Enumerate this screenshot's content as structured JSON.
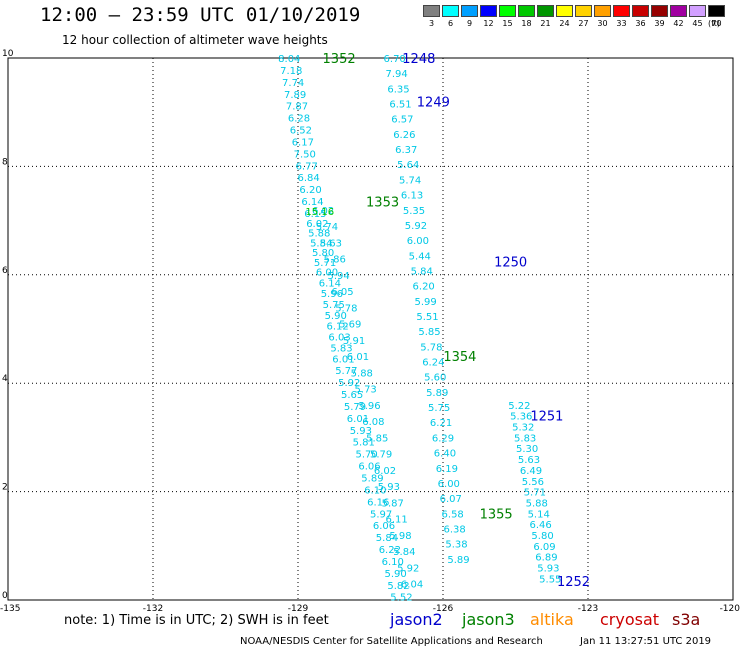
{
  "header": {
    "title": "12:00 – 23:59 UTC 01/10/2019",
    "subtitle": "12 hour collection of altimeter wave heights"
  },
  "legend": {
    "unit": "(ft)",
    "items": [
      {
        "label": "3",
        "color": "#808080"
      },
      {
        "label": "6",
        "color": "#00ffff"
      },
      {
        "label": "9",
        "color": "#00a0ff"
      },
      {
        "label": "12",
        "color": "#0000ff"
      },
      {
        "label": "15",
        "color": "#00ff00"
      },
      {
        "label": "18",
        "color": "#00c800"
      },
      {
        "label": "21",
        "color": "#009600"
      },
      {
        "label": "24",
        "color": "#ffff00"
      },
      {
        "label": "27",
        "color": "#ffd200"
      },
      {
        "label": "30",
        "color": "#ffa000"
      },
      {
        "label": "33",
        "color": "#ff0000"
      },
      {
        "label": "36",
        "color": "#c80000"
      },
      {
        "label": "39",
        "color": "#960000"
      },
      {
        "label": "42",
        "color": "#a000a0"
      },
      {
        "label": "45",
        "color": "#d2a0ff"
      },
      {
        "label": "70",
        "color": "#000000"
      }
    ]
  },
  "axes": {
    "x_ticks": [
      "-135",
      "-132",
      "-129",
      "-126",
      "-123",
      "-120"
    ],
    "y_ticks": [
      "0",
      "2",
      "4",
      "6",
      "8",
      "10"
    ]
  },
  "chart_data": {
    "type": "scatter",
    "xlim": [
      -135,
      -120
    ],
    "ylim": [
      0,
      10
    ],
    "grid": true,
    "tracks": [
      {
        "id": "right",
        "color": "#00c8e6",
        "points": [
          {
            "x": -127.0,
            "y": 10.0,
            "v": "6.70"
          },
          {
            "x": -126.96,
            "y": 9.72,
            "v": "7.94"
          },
          {
            "x": -126.92,
            "y": 9.44,
            "v": "6.35"
          },
          {
            "x": -126.88,
            "y": 9.16,
            "v": "6.51"
          },
          {
            "x": -126.84,
            "y": 8.88,
            "v": "6.57"
          },
          {
            "x": -126.8,
            "y": 8.6,
            "v": "6.26"
          },
          {
            "x": -126.76,
            "y": 8.32,
            "v": "6.37"
          },
          {
            "x": -126.72,
            "y": 8.04,
            "v": "5.64"
          },
          {
            "x": -126.68,
            "y": 7.76,
            "v": "5.74"
          },
          {
            "x": -126.64,
            "y": 7.48,
            "v": "6.13"
          },
          {
            "x": -126.6,
            "y": 7.2,
            "v": "5.35"
          },
          {
            "x": -126.56,
            "y": 6.92,
            "v": "5.92"
          },
          {
            "x": -126.52,
            "y": 6.64,
            "v": "6.00"
          },
          {
            "x": -126.48,
            "y": 6.36,
            "v": "5.44"
          },
          {
            "x": -126.44,
            "y": 6.08,
            "v": "5.84"
          },
          {
            "x": -126.4,
            "y": 5.8,
            "v": "6.20"
          },
          {
            "x": -126.36,
            "y": 5.52,
            "v": "5.99"
          },
          {
            "x": -126.32,
            "y": 5.24,
            "v": "5.51"
          },
          {
            "x": -126.28,
            "y": 4.96,
            "v": "5.85"
          },
          {
            "x": -126.24,
            "y": 4.68,
            "v": "5.78"
          },
          {
            "x": -126.2,
            "y": 4.4,
            "v": "6.24"
          },
          {
            "x": -126.16,
            "y": 4.12,
            "v": "5.60"
          },
          {
            "x": -126.12,
            "y": 3.84,
            "v": "5.89"
          },
          {
            "x": -126.08,
            "y": 3.56,
            "v": "5.75"
          },
          {
            "x": -126.04,
            "y": 3.28,
            "v": "6.21"
          },
          {
            "x": -126.0,
            "y": 3.0,
            "v": "6.29"
          },
          {
            "x": -125.96,
            "y": 2.72,
            "v": "6.40"
          },
          {
            "x": -125.92,
            "y": 2.44,
            "v": "6.19"
          },
          {
            "x": -125.88,
            "y": 2.16,
            "v": "6.00"
          },
          {
            "x": -125.84,
            "y": 1.88,
            "v": "6.07"
          },
          {
            "x": -125.8,
            "y": 1.6,
            "v": "6.58"
          },
          {
            "x": -125.76,
            "y": 1.32,
            "v": "6.38"
          },
          {
            "x": -125.72,
            "y": 1.04,
            "v": "5.38"
          },
          {
            "x": -125.68,
            "y": 0.76,
            "v": "5.89"
          }
        ]
      },
      {
        "id": "right-lower",
        "color": "#00c8e6",
        "points": [
          {
            "x": -124.42,
            "y": 3.6,
            "v": "5.22"
          },
          {
            "x": -124.38,
            "y": 3.4,
            "v": "5.36"
          },
          {
            "x": -124.34,
            "y": 3.2,
            "v": "5.32"
          },
          {
            "x": -124.3,
            "y": 3.0,
            "v": "5.83"
          },
          {
            "x": -124.26,
            "y": 2.8,
            "v": "5.30"
          },
          {
            "x": -124.22,
            "y": 2.6,
            "v": "5.63"
          },
          {
            "x": -124.18,
            "y": 2.4,
            "v": "6.49"
          },
          {
            "x": -124.14,
            "y": 2.2,
            "v": "5.56"
          },
          {
            "x": -124.1,
            "y": 2.0,
            "v": "5.71"
          },
          {
            "x": -124.06,
            "y": 1.8,
            "v": "5.88"
          },
          {
            "x": -124.02,
            "y": 1.6,
            "v": "5.14"
          },
          {
            "x": -123.98,
            "y": 1.4,
            "v": "6.46"
          },
          {
            "x": -123.94,
            "y": 1.2,
            "v": "5.80"
          },
          {
            "x": -123.9,
            "y": 1.0,
            "v": "6.09"
          },
          {
            "x": -123.86,
            "y": 0.8,
            "v": "6.89"
          },
          {
            "x": -123.82,
            "y": 0.6,
            "v": "5.93"
          },
          {
            "x": -123.78,
            "y": 0.4,
            "v": "5.55"
          }
        ]
      },
      {
        "id": "left",
        "color": "#00c8e6",
        "points": [
          {
            "x": -129.18,
            "y": 10.0,
            "v": "8.04"
          },
          {
            "x": -129.14,
            "y": 9.78,
            "v": "7.18"
          },
          {
            "x": -129.1,
            "y": 9.56,
            "v": "7.74"
          },
          {
            "x": -129.06,
            "y": 9.34,
            "v": "7.89"
          },
          {
            "x": -129.02,
            "y": 9.12,
            "v": "7.87"
          },
          {
            "x": -128.98,
            "y": 8.9,
            "v": "6.28"
          },
          {
            "x": -128.94,
            "y": 8.68,
            "v": "6.52"
          },
          {
            "x": -128.9,
            "y": 8.46,
            "v": "6.17"
          },
          {
            "x": -128.86,
            "y": 8.24,
            "v": "7.50"
          },
          {
            "x": -128.82,
            "y": 8.02,
            "v": "6.77"
          },
          {
            "x": -128.78,
            "y": 7.8,
            "v": "6.84"
          },
          {
            "x": -128.74,
            "y": 7.58,
            "v": "6.20"
          },
          {
            "x": -128.7,
            "y": 7.36,
            "v": "6.14"
          },
          {
            "x": -128.64,
            "y": 7.14,
            "v": "6.15"
          },
          {
            "x": -128.6,
            "y": 6.96,
            "v": "6.02"
          },
          {
            "x": -128.56,
            "y": 6.78,
            "v": "5.88"
          },
          {
            "x": -128.52,
            "y": 6.6,
            "v": "5.84"
          },
          {
            "x": -128.48,
            "y": 6.42,
            "v": "5.80"
          },
          {
            "x": -128.44,
            "y": 6.24,
            "v": "5.71"
          },
          {
            "x": -128.4,
            "y": 6.06,
            "v": "6.00"
          },
          {
            "x": -128.34,
            "y": 5.86,
            "v": "6.14"
          },
          {
            "x": -128.3,
            "y": 5.66,
            "v": "5.96"
          },
          {
            "x": -128.26,
            "y": 5.46,
            "v": "5.75"
          },
          {
            "x": -128.22,
            "y": 5.26,
            "v": "5.90"
          },
          {
            "x": -128.18,
            "y": 5.06,
            "v": "6.12"
          },
          {
            "x": -128.14,
            "y": 4.86,
            "v": "6.03"
          },
          {
            "x": -128.1,
            "y": 4.66,
            "v": "5.83"
          },
          {
            "x": -128.06,
            "y": 4.46,
            "v": "6.01"
          },
          {
            "x": -128.0,
            "y": 4.24,
            "v": "5.77"
          },
          {
            "x": -127.94,
            "y": 4.02,
            "v": "5.92"
          },
          {
            "x": -127.88,
            "y": 3.8,
            "v": "5.65"
          },
          {
            "x": -127.82,
            "y": 3.58,
            "v": "5.79"
          },
          {
            "x": -127.76,
            "y": 3.36,
            "v": "6.01"
          },
          {
            "x": -127.7,
            "y": 3.14,
            "v": "5.93"
          },
          {
            "x": -127.64,
            "y": 2.92,
            "v": "5.81"
          },
          {
            "x": -127.58,
            "y": 2.7,
            "v": "5.70"
          },
          {
            "x": -127.52,
            "y": 2.48,
            "v": "6.06"
          },
          {
            "x": -127.46,
            "y": 2.26,
            "v": "5.89"
          },
          {
            "x": -127.4,
            "y": 2.04,
            "v": "6.10"
          },
          {
            "x": -127.34,
            "y": 1.82,
            "v": "6.16"
          },
          {
            "x": -127.28,
            "y": 1.6,
            "v": "5.97"
          },
          {
            "x": -127.22,
            "y": 1.38,
            "v": "6.06"
          },
          {
            "x": -127.16,
            "y": 1.16,
            "v": "5.84"
          },
          {
            "x": -127.1,
            "y": 0.94,
            "v": "6.22"
          },
          {
            "x": -127.04,
            "y": 0.72,
            "v": "6.10"
          },
          {
            "x": -126.98,
            "y": 0.5,
            "v": "5.90"
          },
          {
            "x": -126.92,
            "y": 0.28,
            "v": "5.82"
          },
          {
            "x": -126.86,
            "y": 0.06,
            "v": "5.52"
          }
        ]
      },
      {
        "id": "left-b",
        "color": "#00c8e6",
        "points": [
          {
            "x": -128.48,
            "y": 7.2,
            "v": "6.02"
          },
          {
            "x": -128.4,
            "y": 6.9,
            "v": "5.74"
          },
          {
            "x": -128.32,
            "y": 6.6,
            "v": "5.63"
          },
          {
            "x": -128.24,
            "y": 6.3,
            "v": "5.86"
          },
          {
            "x": -128.16,
            "y": 6.0,
            "v": "5.94"
          },
          {
            "x": -128.08,
            "y": 5.7,
            "v": "6.05"
          },
          {
            "x": -128.0,
            "y": 5.4,
            "v": "5.78"
          },
          {
            "x": -127.92,
            "y": 5.1,
            "v": "5.69"
          },
          {
            "x": -127.84,
            "y": 4.8,
            "v": "5.91"
          },
          {
            "x": -127.76,
            "y": 4.5,
            "v": "6.01"
          },
          {
            "x": -127.68,
            "y": 4.2,
            "v": "5.88"
          },
          {
            "x": -127.6,
            "y": 3.9,
            "v": "5.73"
          },
          {
            "x": -127.52,
            "y": 3.6,
            "v": "5.96"
          },
          {
            "x": -127.44,
            "y": 3.3,
            "v": "6.08"
          },
          {
            "x": -127.36,
            "y": 3.0,
            "v": "5.85"
          },
          {
            "x": -127.28,
            "y": 2.7,
            "v": "5.79"
          },
          {
            "x": -127.2,
            "y": 2.4,
            "v": "6.02"
          },
          {
            "x": -127.12,
            "y": 2.1,
            "v": "5.93"
          },
          {
            "x": -127.04,
            "y": 1.8,
            "v": "5.87"
          },
          {
            "x": -126.96,
            "y": 1.5,
            "v": "6.11"
          },
          {
            "x": -126.88,
            "y": 1.2,
            "v": "5.98"
          },
          {
            "x": -126.8,
            "y": 0.9,
            "v": "5.84"
          },
          {
            "x": -126.72,
            "y": 0.6,
            "v": "5.92"
          },
          {
            "x": -126.64,
            "y": 0.3,
            "v": "6.04"
          }
        ]
      }
    ],
    "special": [
      {
        "x": -128.55,
        "y": 7.18,
        "v": "15.16",
        "color": "#00c800"
      }
    ],
    "passes": [
      {
        "x": -128.15,
        "y": 10.0,
        "v": "1352",
        "color": "#008000"
      },
      {
        "x": -126.5,
        "y": 10.0,
        "v": "1248",
        "color": "#0000cc"
      },
      {
        "x": -126.2,
        "y": 9.2,
        "v": "1249",
        "color": "#0000cc"
      },
      {
        "x": -127.25,
        "y": 7.35,
        "v": "1353",
        "color": "#008000"
      },
      {
        "x": -124.6,
        "y": 6.25,
        "v": "1250",
        "color": "#0000cc"
      },
      {
        "x": -125.65,
        "y": 4.5,
        "v": "1354",
        "color": "#008000"
      },
      {
        "x": -123.85,
        "y": 3.4,
        "v": "1251",
        "color": "#0000cc"
      },
      {
        "x": -124.9,
        "y": 1.6,
        "v": "1355",
        "color": "#008000"
      },
      {
        "x": -123.3,
        "y": 0.35,
        "v": "1252",
        "color": "#0000cc"
      }
    ]
  },
  "footer": {
    "note": "note:  1) Time is in UTC;  2) SWH is in feet",
    "satellites": [
      {
        "label": "jason2",
        "color": "#0000cc"
      },
      {
        "label": "jason3",
        "color": "#008000"
      },
      {
        "label": "altika",
        "color": "#ff8c00"
      },
      {
        "label": "cryosat",
        "color": "#cc0000"
      },
      {
        "label": "s3a",
        "color": "#800000"
      }
    ],
    "credit": "NOAA/NESDIS Center for Satellite Applications and Research",
    "stamp": "Jan 11 13:27:51 UTC 2019"
  }
}
